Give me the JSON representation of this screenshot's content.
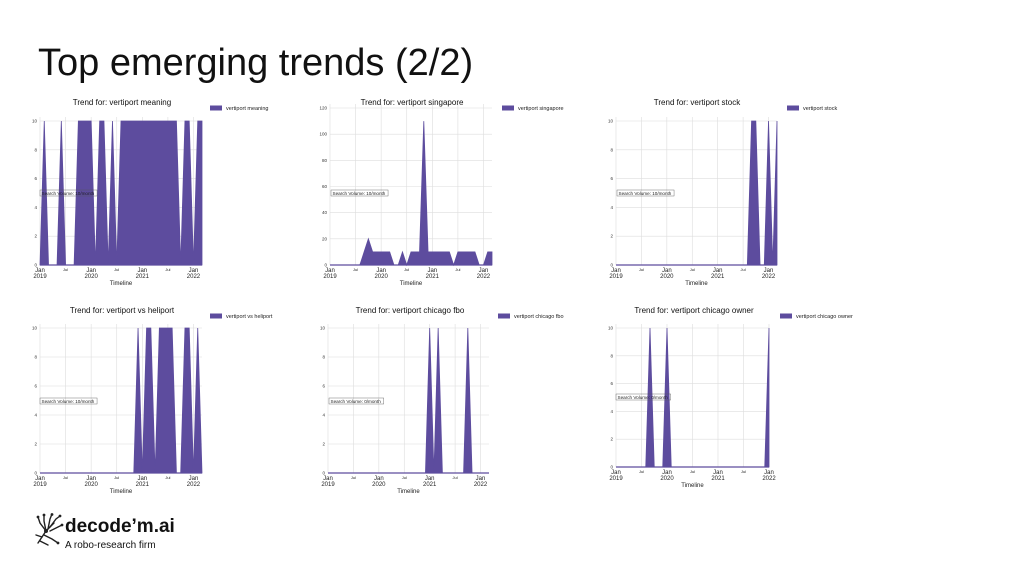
{
  "slide": {
    "title": "Top emerging trends (2/2)"
  },
  "brand": {
    "name": "decode’m.ai",
    "tagline": "A robo-research firm",
    "color": "#222222"
  },
  "style": {
    "fill": "#5d4c9e",
    "grid": "#dddddd"
  },
  "chart_data": [
    {
      "type": "area",
      "title": "Trend for: vertiport meaning",
      "legend": "vertiport meaning",
      "annotation": "Search Volume: 10/month",
      "xlabel": "Timeline",
      "ylim": [
        0,
        10
      ],
      "yticks": [
        0,
        2,
        4,
        6,
        8,
        10
      ],
      "xticks": [
        "Jan\n2019",
        "Jul",
        "Jan\n2020",
        "Jul",
        "Jan\n2021",
        "Jul",
        "Jan\n2022"
      ],
      "x_range_months": [
        0,
        38
      ],
      "x": [
        0,
        1,
        2,
        3,
        4,
        5,
        6,
        7,
        8,
        9,
        10,
        11,
        12,
        13,
        14,
        15,
        16,
        17,
        18,
        19,
        20,
        21,
        22,
        23,
        24,
        25,
        26,
        27,
        28,
        29,
        30,
        31,
        32,
        33,
        34,
        35,
        36,
        37,
        38
      ],
      "values": [
        0,
        10,
        0,
        0,
        0,
        10,
        0,
        0,
        0,
        10,
        10,
        10,
        10,
        0,
        10,
        10,
        0,
        10,
        0,
        10,
        10,
        10,
        10,
        10,
        10,
        10,
        10,
        10,
        10,
        10,
        10,
        10,
        10,
        0,
        10,
        10,
        0,
        10,
        10
      ]
    },
    {
      "type": "area",
      "title": "Trend for: vertiport singapore",
      "legend": "vertiport singapore",
      "annotation": "Search Volume: 10/month",
      "xlabel": "Timeline",
      "ylim": [
        0,
        120
      ],
      "yticks": [
        0,
        20,
        40,
        60,
        80,
        100,
        120
      ],
      "xticks": [
        "Jan\n2019",
        "Jul",
        "Jan\n2020",
        "Jul",
        "Jan\n2021",
        "Jul",
        "Jan\n2022"
      ],
      "x_range_months": [
        0,
        38
      ],
      "x": [
        0,
        1,
        2,
        3,
        4,
        5,
        6,
        7,
        8,
        9,
        10,
        11,
        12,
        13,
        14,
        15,
        16,
        17,
        18,
        19,
        20,
        21,
        22,
        23,
        24,
        25,
        26,
        27,
        28,
        29,
        30,
        31,
        32,
        33,
        34,
        35,
        36,
        37,
        38
      ],
      "values": [
        0,
        0,
        0,
        0,
        0,
        0,
        0,
        0,
        10,
        20,
        10,
        10,
        10,
        10,
        10,
        0,
        0,
        10,
        0,
        10,
        10,
        10,
        110,
        10,
        10,
        10,
        10,
        10,
        10,
        0,
        10,
        10,
        10,
        10,
        10,
        0,
        0,
        10,
        10
      ]
    },
    {
      "type": "area",
      "title": "Trend for: vertiport stock",
      "legend": "vertiport stock",
      "annotation": "Search Volume: 10/month",
      "xlabel": "Timeline",
      "ylim": [
        0,
        10
      ],
      "yticks": [
        0,
        2,
        4,
        6,
        8,
        10
      ],
      "xticks": [
        "Jan\n2019",
        "Jul",
        "Jan\n2020",
        "Jul",
        "Jan\n2021",
        "Jul",
        "Jan\n2022"
      ],
      "x_range_months": [
        0,
        38
      ],
      "x": [
        0,
        1,
        2,
        3,
        4,
        5,
        6,
        7,
        8,
        9,
        10,
        11,
        12,
        13,
        14,
        15,
        16,
        17,
        18,
        19,
        20,
        21,
        22,
        23,
        24,
        25,
        26,
        27,
        28,
        29,
        30,
        31,
        32,
        33,
        34,
        35,
        36,
        37,
        38
      ],
      "values": [
        0,
        0,
        0,
        0,
        0,
        0,
        0,
        0,
        0,
        0,
        0,
        0,
        0,
        0,
        0,
        0,
        0,
        0,
        0,
        0,
        0,
        0,
        0,
        0,
        0,
        0,
        0,
        0,
        0,
        0,
        0,
        0,
        10,
        10,
        0,
        0,
        10,
        0,
        10
      ]
    },
    {
      "type": "area",
      "title": "Trend for: vertiport vs heliport",
      "legend": "vertiport vs heliport",
      "annotation": "Search Volume: 10/month",
      "xlabel": "Timeline",
      "ylim": [
        0,
        10
      ],
      "yticks": [
        0,
        2,
        4,
        6,
        8,
        10
      ],
      "xticks": [
        "Jan\n2019",
        "Jul",
        "Jan\n2020",
        "Jul",
        "Jan\n2021",
        "Jul",
        "Jan\n2022"
      ],
      "x_range_months": [
        0,
        38
      ],
      "x": [
        0,
        1,
        2,
        3,
        4,
        5,
        6,
        7,
        8,
        9,
        10,
        11,
        12,
        13,
        14,
        15,
        16,
        17,
        18,
        19,
        20,
        21,
        22,
        23,
        24,
        25,
        26,
        27,
        28,
        29,
        30,
        31,
        32,
        33,
        34,
        35,
        36,
        37,
        38
      ],
      "values": [
        0,
        0,
        0,
        0,
        0,
        0,
        0,
        0,
        0,
        0,
        0,
        0,
        0,
        0,
        0,
        0,
        0,
        0,
        0,
        0,
        0,
        0,
        0,
        10,
        0,
        10,
        10,
        0,
        10,
        10,
        10,
        10,
        0,
        0,
        10,
        10,
        0,
        10,
        0
      ]
    },
    {
      "type": "area",
      "title": "Trend for: vertiport chicago fbo",
      "legend": "vertiport chicago fbo",
      "annotation": "Search Volume: 0/month",
      "xlabel": "Timeline",
      "ylim": [
        0,
        10
      ],
      "yticks": [
        0,
        2,
        4,
        6,
        8,
        10
      ],
      "xticks": [
        "Jan\n2019",
        "Jul",
        "Jan\n2020",
        "Jul",
        "Jan\n2021",
        "Jul",
        "Jan\n2022"
      ],
      "x_range_months": [
        0,
        38
      ],
      "x": [
        0,
        1,
        2,
        3,
        4,
        5,
        6,
        7,
        8,
        9,
        10,
        11,
        12,
        13,
        14,
        15,
        16,
        17,
        18,
        19,
        20,
        21,
        22,
        23,
        24,
        25,
        26,
        27,
        28,
        29,
        30,
        31,
        32,
        33,
        34,
        35,
        36,
        37,
        38
      ],
      "values": [
        0,
        0,
        0,
        0,
        0,
        0,
        0,
        0,
        0,
        0,
        0,
        0,
        0,
        0,
        0,
        0,
        0,
        0,
        0,
        0,
        0,
        0,
        0,
        0,
        10,
        0,
        10,
        0,
        0,
        0,
        0,
        0,
        0,
        10,
        0,
        0,
        0,
        0,
        0
      ]
    },
    {
      "type": "area",
      "title": "Trend for: vertiport chicago owner",
      "legend": "vertiport chicago owner",
      "annotation": "Search Volume: 0/month",
      "xlabel": "Timeline",
      "ylim": [
        0,
        10
      ],
      "yticks": [
        0,
        2,
        4,
        6,
        8,
        10
      ],
      "xticks": [
        "Jan\n2019",
        "Jul",
        "Jan\n2020",
        "Jul",
        "Jan\n2021",
        "Jul",
        "Jan\n2022"
      ],
      "x_range_months": [
        0,
        36
      ],
      "x": [
        0,
        1,
        2,
        3,
        4,
        5,
        6,
        7,
        8,
        9,
        10,
        11,
        12,
        13,
        14,
        15,
        16,
        17,
        18,
        19,
        20,
        21,
        22,
        23,
        24,
        25,
        26,
        27,
        28,
        29,
        30,
        31,
        32,
        33,
        34,
        35,
        36
      ],
      "values": [
        0,
        0,
        0,
        0,
        0,
        0,
        0,
        0,
        10,
        0,
        0,
        0,
        10,
        0,
        0,
        0,
        0,
        0,
        0,
        0,
        0,
        0,
        0,
        0,
        0,
        0,
        0,
        0,
        0,
        0,
        0,
        0,
        0,
        0,
        0,
        0,
        10
      ]
    }
  ]
}
